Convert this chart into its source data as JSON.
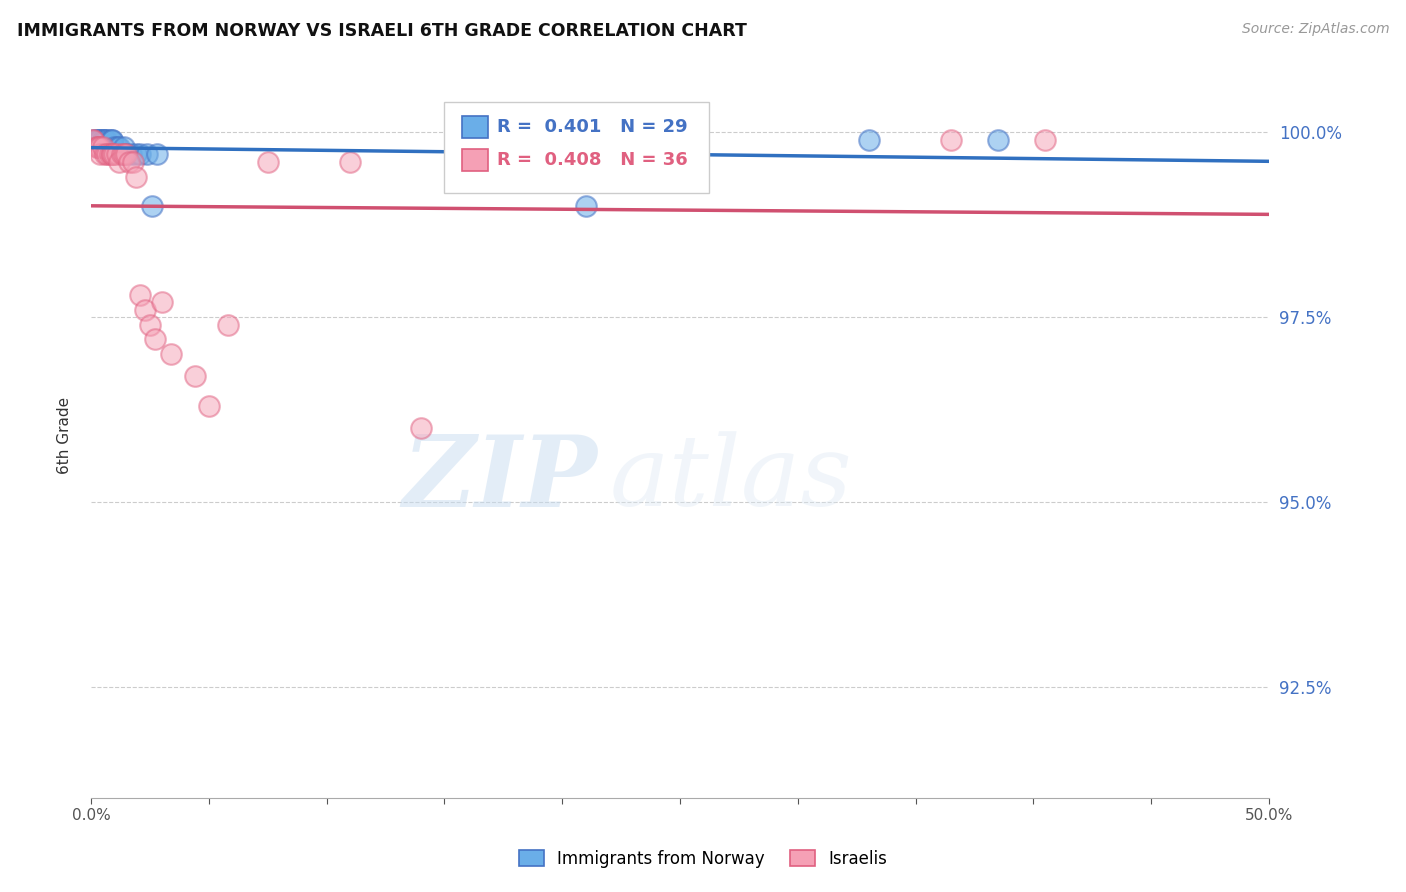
{
  "title": "IMMIGRANTS FROM NORWAY VS ISRAELI 6TH GRADE CORRELATION CHART",
  "source": "Source: ZipAtlas.com",
  "ylabel": "6th Grade",
  "xlim": [
    0.0,
    0.5
  ],
  "ylim": [
    0.91,
    1.008
  ],
  "yticks": [
    0.925,
    0.95,
    0.975,
    1.0
  ],
  "ytick_labels": [
    "92.5%",
    "95.0%",
    "97.5%",
    "100.0%"
  ],
  "xticks": [
    0.0,
    0.05,
    0.1,
    0.15,
    0.2,
    0.25,
    0.3,
    0.35,
    0.4,
    0.45,
    0.5
  ],
  "xtick_labels": [
    "0.0%",
    "",
    "",
    "",
    "",
    "",
    "",
    "",
    "",
    "",
    "50.0%"
  ],
  "blue_color": "#6aaee8",
  "pink_color": "#f5a0b5",
  "blue_edge_color": "#4472C4",
  "pink_edge_color": "#e06080",
  "blue_line_color": "#3070c0",
  "pink_line_color": "#d05070",
  "watermark_zip": "ZIP",
  "watermark_atlas": "atlas",
  "legend_R_blue": "0.401",
  "legend_N_blue": "29",
  "legend_R_pink": "0.408",
  "legend_N_pink": "36",
  "legend_label_blue": "Immigrants from Norway",
  "legend_label_pink": "Israelis",
  "blue_x": [
    0.001,
    0.002,
    0.003,
    0.003,
    0.004,
    0.004,
    0.005,
    0.005,
    0.006,
    0.006,
    0.007,
    0.008,
    0.009,
    0.009,
    0.01,
    0.011,
    0.012,
    0.013,
    0.014,
    0.015,
    0.017,
    0.019,
    0.021,
    0.024,
    0.026,
    0.028,
    0.21,
    0.33,
    0.385
  ],
  "blue_y": [
    0.999,
    0.999,
    0.999,
    0.999,
    0.999,
    0.999,
    0.999,
    0.999,
    0.999,
    0.999,
    0.999,
    0.999,
    0.999,
    0.999,
    0.998,
    0.998,
    0.998,
    0.997,
    0.998,
    0.997,
    0.997,
    0.997,
    0.997,
    0.997,
    0.99,
    0.997,
    0.99,
    0.999,
    0.999
  ],
  "pink_x": [
    0.001,
    0.001,
    0.002,
    0.003,
    0.003,
    0.004,
    0.004,
    0.005,
    0.006,
    0.007,
    0.008,
    0.009,
    0.009,
    0.01,
    0.011,
    0.012,
    0.013,
    0.014,
    0.015,
    0.016,
    0.018,
    0.019,
    0.021,
    0.023,
    0.025,
    0.027,
    0.03,
    0.034,
    0.044,
    0.05,
    0.058,
    0.075,
    0.11,
    0.14,
    0.365,
    0.405
  ],
  "pink_y": [
    0.999,
    0.999,
    0.998,
    0.998,
    0.998,
    0.998,
    0.997,
    0.998,
    0.997,
    0.997,
    0.997,
    0.997,
    0.997,
    0.997,
    0.997,
    0.996,
    0.997,
    0.997,
    0.997,
    0.996,
    0.996,
    0.994,
    0.978,
    0.976,
    0.974,
    0.972,
    0.977,
    0.97,
    0.967,
    0.963,
    0.974,
    0.996,
    0.996,
    0.96,
    0.999,
    0.999
  ],
  "grid_color": "#cccccc",
  "spine_color": "#aaaaaa",
  "tick_color": "#555555",
  "right_tick_color": "#4472C4",
  "bg_color": "#ffffff"
}
